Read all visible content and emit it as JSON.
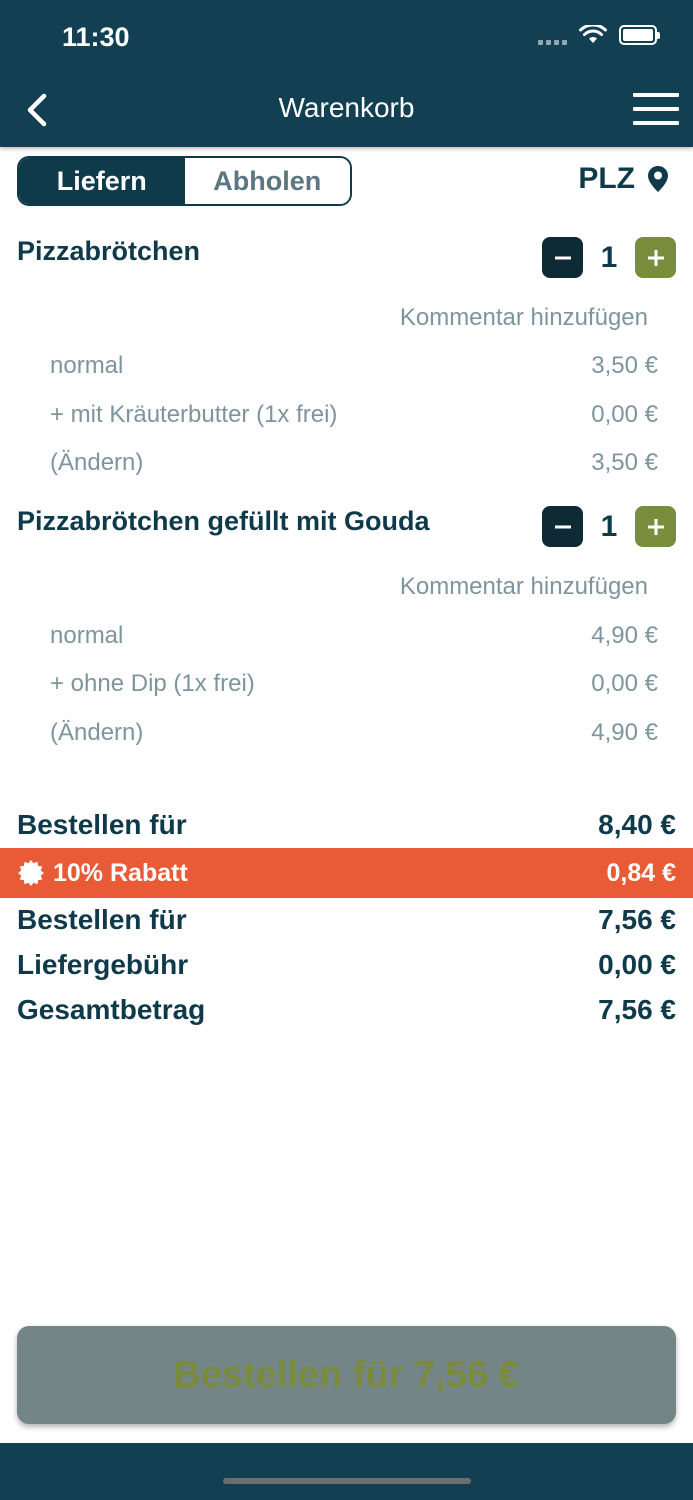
{
  "status_bar": {
    "time": "11:30"
  },
  "nav": {
    "title": "Warenkorb"
  },
  "segment": {
    "deliver": "Liefern",
    "pickup": "Abholen"
  },
  "plz": {
    "label": "PLZ"
  },
  "items": [
    {
      "name": "Pizzabrötchen",
      "quantity": "1",
      "comment": "Kommentar hinzufügen",
      "options": [
        {
          "label": "normal",
          "price": "3,50 €"
        },
        {
          "label": "+ mit Kräuterbutter (1x frei)",
          "price": "0,00 €"
        },
        {
          "label": "(Ändern)",
          "price": "3,50 €"
        }
      ]
    },
    {
      "name": "Pizzabrötchen gefüllt mit Gouda",
      "quantity": "1",
      "comment": "Kommentar hinzufügen",
      "options": [
        {
          "label": "normal",
          "price": "4,90 €"
        },
        {
          "label": "+ ohne Dip (1x frei)",
          "price": "0,00 €"
        },
        {
          "label": "(Ändern)",
          "price": "4,90 €"
        }
      ]
    }
  ],
  "summary": {
    "subtotal_label": "Bestellen für",
    "subtotal_value": "8,40 €",
    "discount_label": "10% Rabatt",
    "discount_value": "0,84 €",
    "after_discount_label": "Bestellen für",
    "after_discount_value": "7,56 €",
    "delivery_label": "Liefergebühr",
    "delivery_value": "0,00 €",
    "total_label": "Gesamtbetrag",
    "total_value": "7,56 €"
  },
  "order_button": {
    "label": "Bestellen für 7,56 €"
  },
  "colors": {
    "header": "#133f53",
    "primary_text": "#0f3a4a",
    "accent_green": "#798e3c",
    "discount": "#e95a36",
    "muted": "#7e959e"
  }
}
